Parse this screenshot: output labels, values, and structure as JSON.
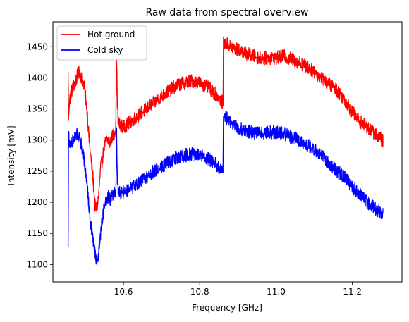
{
  "chart_data": {
    "type": "line",
    "title": "Raw data from spectral overview",
    "xlabel": "Frequency [GHz]",
    "ylabel": "Intensity [mV]",
    "xlim": [
      10.415,
      11.33
    ],
    "ylim": [
      1072,
      1490
    ],
    "xticks": [
      10.6,
      10.8,
      11.0,
      11.2
    ],
    "xtick_labels": [
      "10.6",
      "10.8",
      "11.0",
      "11.2"
    ],
    "yticks": [
      1100,
      1150,
      1200,
      1250,
      1300,
      1350,
      1400,
      1450
    ],
    "ytick_labels": [
      "1100",
      "1150",
      "1200",
      "1250",
      "1300",
      "1350",
      "1400",
      "1450"
    ],
    "grid": false,
    "legend_position": "top-left",
    "series": [
      {
        "name": "Hot ground",
        "color": "#ff0000",
        "x": [
          10.455,
          10.456,
          10.458,
          10.462,
          10.468,
          10.475,
          10.48,
          10.485,
          10.49,
          10.495,
          10.5,
          10.505,
          10.51,
          10.515,
          10.52,
          10.525,
          10.53,
          10.535,
          10.54,
          10.545,
          10.55,
          10.555,
          10.56,
          10.565,
          10.57,
          10.575,
          10.58,
          10.582,
          10.584,
          10.586,
          10.59,
          10.6,
          10.62,
          10.64,
          10.66,
          10.68,
          10.7,
          10.72,
          10.74,
          10.76,
          10.78,
          10.8,
          10.82,
          10.84,
          10.86,
          10.861,
          10.862,
          10.87,
          10.88,
          10.9,
          10.92,
          10.94,
          10.96,
          10.98,
          11.0,
          11.02,
          11.04,
          11.06,
          11.08,
          11.1,
          11.12,
          11.14,
          11.16,
          11.18,
          11.2,
          11.22,
          11.24,
          11.26,
          11.28
        ],
        "y": [
          1405,
          1335,
          1360,
          1375,
          1385,
          1395,
          1405,
          1410,
          1400,
          1390,
          1375,
          1345,
          1300,
          1270,
          1240,
          1195,
          1190,
          1210,
          1255,
          1270,
          1290,
          1300,
          1300,
          1295,
          1305,
          1310,
          1320,
          1440,
          1355,
          1330,
          1325,
          1320,
          1330,
          1340,
          1350,
          1360,
          1370,
          1380,
          1388,
          1392,
          1395,
          1392,
          1385,
          1375,
          1360,
          1362,
          1455,
          1455,
          1450,
          1445,
          1440,
          1435,
          1432,
          1432,
          1432,
          1435,
          1430,
          1425,
          1418,
          1410,
          1400,
          1390,
          1380,
          1365,
          1345,
          1330,
          1320,
          1310,
          1300
        ]
      },
      {
        "name": "Cold sky",
        "color": "#0000ff",
        "x": [
          10.455,
          10.456,
          10.458,
          10.462,
          10.468,
          10.475,
          10.48,
          10.485,
          10.49,
          10.495,
          10.5,
          10.505,
          10.51,
          10.515,
          10.52,
          10.525,
          10.53,
          10.535,
          10.54,
          10.545,
          10.55,
          10.555,
          10.56,
          10.565,
          10.57,
          10.575,
          10.58,
          10.582,
          10.584,
          10.586,
          10.59,
          10.6,
          10.62,
          10.64,
          10.66,
          10.68,
          10.7,
          10.72,
          10.74,
          10.76,
          10.78,
          10.8,
          10.82,
          10.84,
          10.86,
          10.861,
          10.862,
          10.87,
          10.88,
          10.9,
          10.92,
          10.94,
          10.96,
          10.98,
          11.0,
          11.02,
          11.04,
          11.06,
          11.08,
          11.1,
          11.12,
          11.14,
          11.16,
          11.18,
          11.2,
          11.22,
          11.24,
          11.26,
          11.28
        ],
        "y": [
          1135,
          1315,
          1290,
          1295,
          1300,
          1305,
          1310,
          1305,
          1290,
          1275,
          1255,
          1225,
          1190,
          1160,
          1140,
          1120,
          1105,
          1115,
          1150,
          1175,
          1195,
          1205,
          1210,
          1205,
          1210,
          1215,
          1215,
          1315,
          1235,
          1220,
          1215,
          1215,
          1222,
          1230,
          1240,
          1250,
          1258,
          1265,
          1272,
          1275,
          1278,
          1275,
          1270,
          1262,
          1248,
          1250,
          1340,
          1335,
          1330,
          1320,
          1315,
          1312,
          1312,
          1312,
          1312,
          1310,
          1305,
          1300,
          1292,
          1285,
          1275,
          1262,
          1250,
          1240,
          1225,
          1212,
          1200,
          1190,
          1180
        ]
      }
    ]
  }
}
